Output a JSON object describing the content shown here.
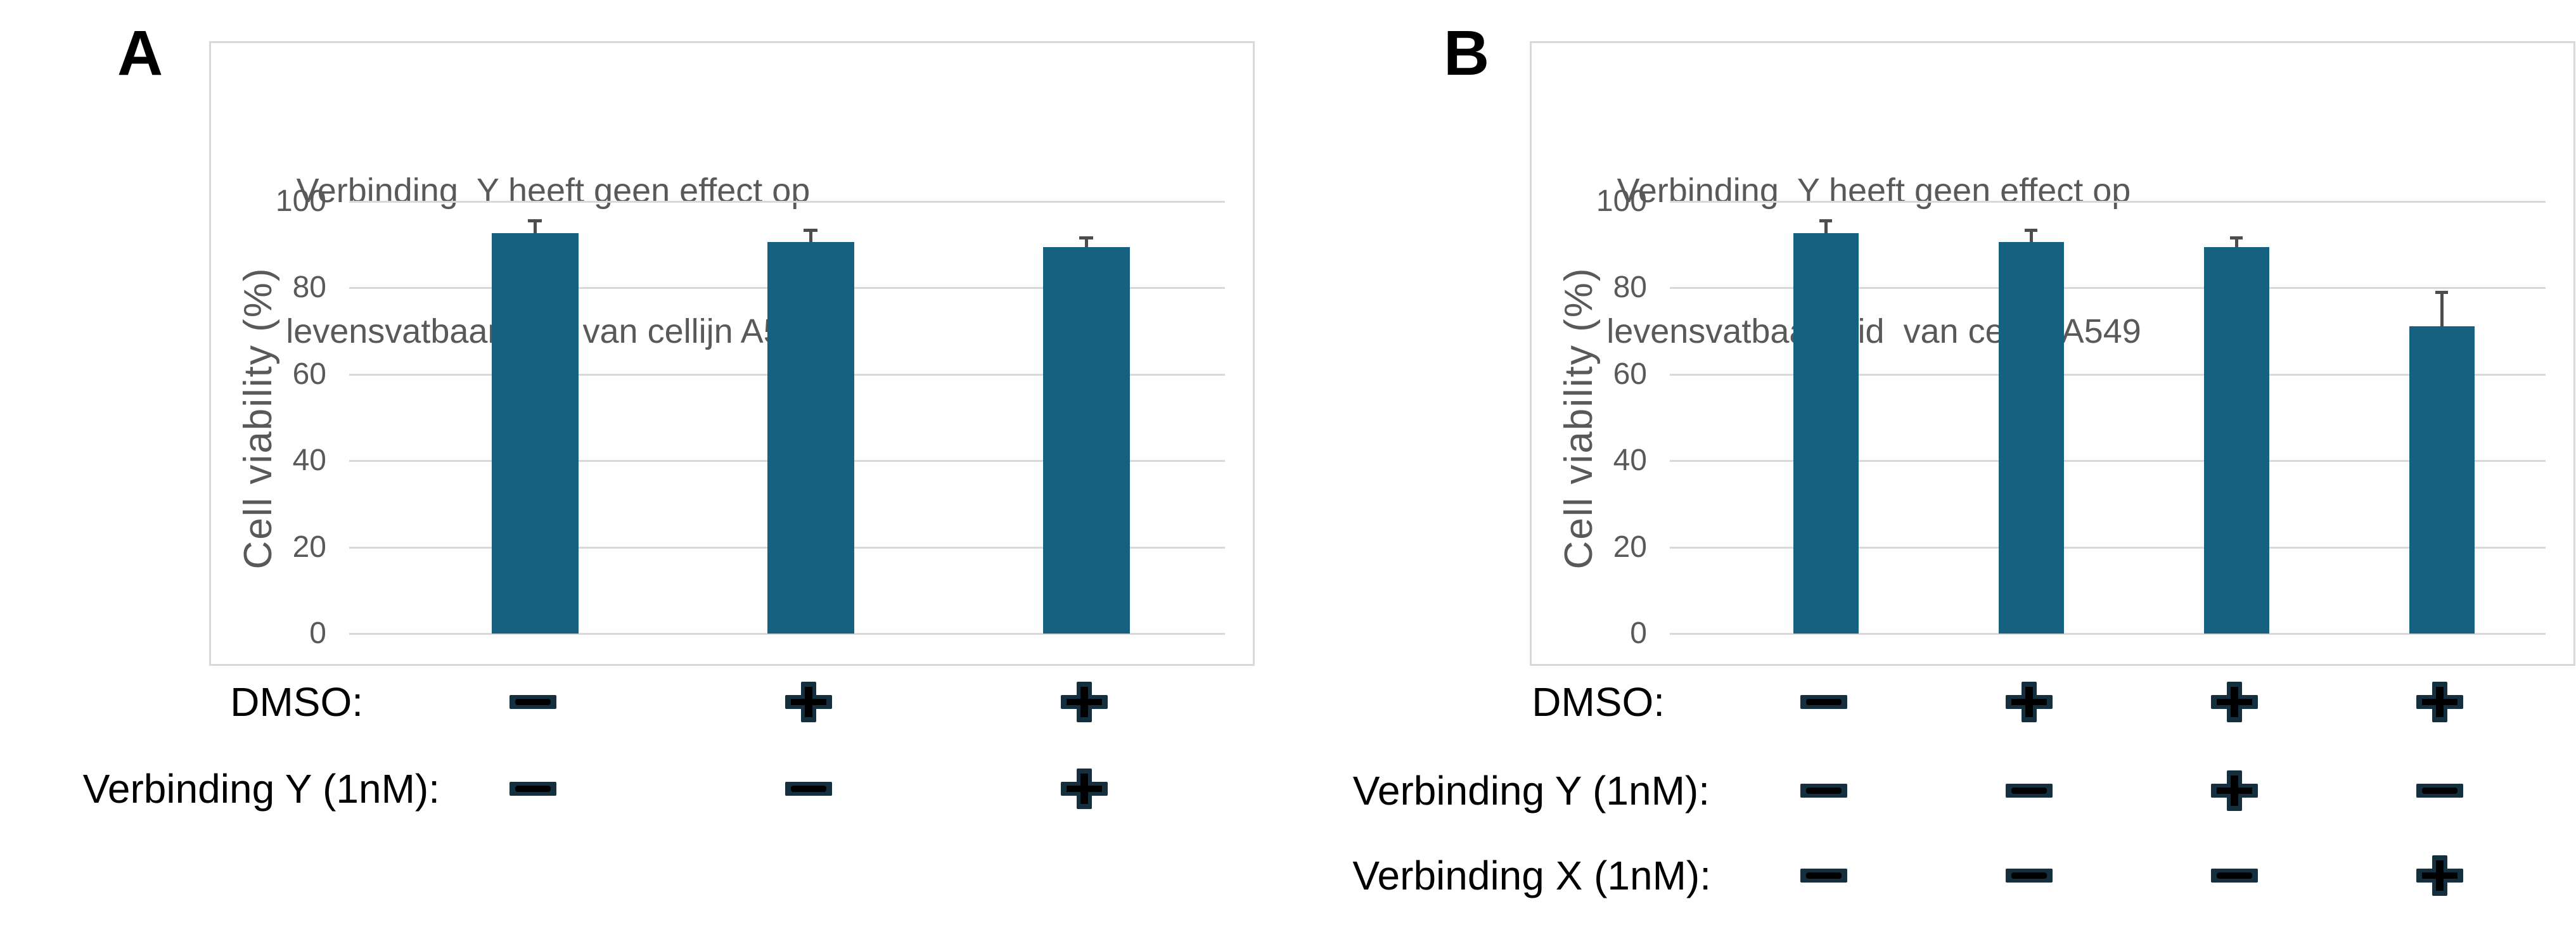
{
  "figure": {
    "panels": [
      {
        "label": "A",
        "title_line1": "Verbinding  Y heeft geen effect op",
        "title_line2": "levensvatbaarheid  van cellijn A549",
        "ylabel": "Cell viability (%)"
      },
      {
        "label": "B",
        "title_line1": "Verbinding  Y heeft geen effect op",
        "title_line2": "levensvatbaarheid  van cellijn A549",
        "ylabel": "Cell viability (%)"
      }
    ]
  },
  "colors": {
    "bar": "#166080",
    "gridline": "#D9D9D9",
    "box_border": "#D9D9D9",
    "axis_text": "#595959",
    "error_bar": "#4D4D4D",
    "row_label_text": "#000000",
    "symbol_outline_navy": "#14303F",
    "symbol_core_black": "#000000"
  },
  "chart_data": [
    {
      "type": "bar",
      "panel": "A",
      "title": "Verbinding Y heeft geen effect op levensvatbaarheid van cellijn A549",
      "xlabel": "",
      "ylabel": "Cell viability (%)",
      "ylim": [
        0,
        100
      ],
      "yticks": [
        0,
        20,
        40,
        60,
        80,
        100
      ],
      "grid": true,
      "legend_position": "none",
      "bar_color": "#166080",
      "categories": [
        "DMSO − / Verbinding Y −",
        "DMSO + / Verbinding Y −",
        "DMSO + / Verbinding Y +"
      ],
      "values": [
        92.7,
        90.6,
        89.4
      ],
      "errors_plus": [
        2.9,
        2.8,
        2.3
      ],
      "condition_rows": [
        {
          "label": "DMSO:",
          "signs": [
            "−",
            "+",
            "+"
          ]
        },
        {
          "label": "Verbinding Y (1nM):",
          "signs": [
            "−",
            "−",
            "+"
          ]
        }
      ]
    },
    {
      "type": "bar",
      "panel": "B",
      "title": "Verbinding Y heeft geen effect op levensvatbaarheid van cellijn A549",
      "xlabel": "",
      "ylabel": "Cell viability (%)",
      "ylim": [
        0,
        100
      ],
      "yticks": [
        0,
        20,
        40,
        60,
        80,
        100
      ],
      "grid": true,
      "legend_position": "none",
      "bar_color": "#166080",
      "categories": [
        "DMSO − / Y − / X −",
        "DMSO + / Y − / X −",
        "DMSO + / Y + / X −",
        "DMSO + / Y − / X +"
      ],
      "values": [
        92.7,
        90.6,
        89.4,
        71.1
      ],
      "errors_plus": [
        2.9,
        2.8,
        2.3,
        7.9
      ],
      "condition_rows": [
        {
          "label": "DMSO:",
          "signs": [
            "−",
            "+",
            "+",
            "+"
          ]
        },
        {
          "label": "Verbinding Y (1nM):",
          "signs": [
            "−",
            "−",
            "+",
            "−"
          ]
        },
        {
          "label": "Verbinding X (1nM):",
          "signs": [
            "−",
            "−",
            "−",
            "+"
          ]
        }
      ]
    }
  ]
}
